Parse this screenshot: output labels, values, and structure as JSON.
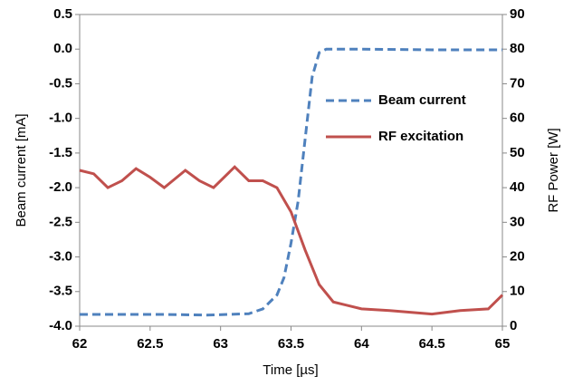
{
  "chart_data": {
    "type": "line",
    "x_label": "Time [µs]",
    "y_label": "Beam current [mA]",
    "y2_label": "RF Power [W]",
    "xlim": [
      62,
      65
    ],
    "xticks": [
      62,
      62.5,
      63,
      63.5,
      64,
      64.5,
      65
    ],
    "ylim": [
      -4.0,
      0.5
    ],
    "yticks": [
      0.5,
      {
        "value": 0,
        "label": "0.0"
      },
      -0.5,
      {
        "value": -1,
        "label": "-1.0"
      },
      -1.5,
      {
        "value": -2,
        "label": "-2.0"
      },
      -2.5,
      {
        "value": -3,
        "label": "-3.0"
      },
      -3.5,
      {
        "value": -4,
        "label": "-4.0"
      }
    ],
    "y2lim": [
      0,
      90
    ],
    "y2ticks": [
      0,
      10,
      20,
      30,
      40,
      50,
      60,
      70,
      80,
      90
    ],
    "legend": "upper right",
    "series": [
      {
        "name": "Beam current",
        "color": "#4f81bd",
        "linestyle": "dashed",
        "x": [
          62,
          62.3,
          62.6,
          62.9,
          63.2,
          63.3,
          63.4,
          63.45,
          63.5,
          63.55,
          63.6,
          63.65,
          63.7,
          63.75,
          63.8,
          64,
          64.5,
          65
        ],
        "values": [
          -3.83,
          -3.83,
          -3.83,
          -3.84,
          -3.82,
          -3.75,
          -3.55,
          -3.3,
          -2.8,
          -2.2,
          -1.3,
          -0.4,
          -0.05,
          0.0,
          0.0,
          0.0,
          -0.01,
          -0.01
        ]
      },
      {
        "name": "RF excitation",
        "color": "#c0504d",
        "linestyle": "solid",
        "axis": "y2",
        "x": [
          62,
          62.1,
          62.2,
          62.3,
          62.4,
          62.5,
          62.6,
          62.75,
          62.85,
          62.95,
          63.1,
          63.2,
          63.3,
          63.4,
          63.5,
          63.6,
          63.7,
          63.8,
          64,
          64.2,
          64.5,
          64.7,
          64.9,
          65
        ],
        "values": [
          45,
          44,
          40,
          42,
          45.5,
          43,
          40,
          45,
          42,
          40,
          46,
          42,
          42,
          40,
          33,
          22,
          12,
          7,
          5,
          4.5,
          3.5,
          4.5,
          5,
          9
        ]
      }
    ]
  }
}
